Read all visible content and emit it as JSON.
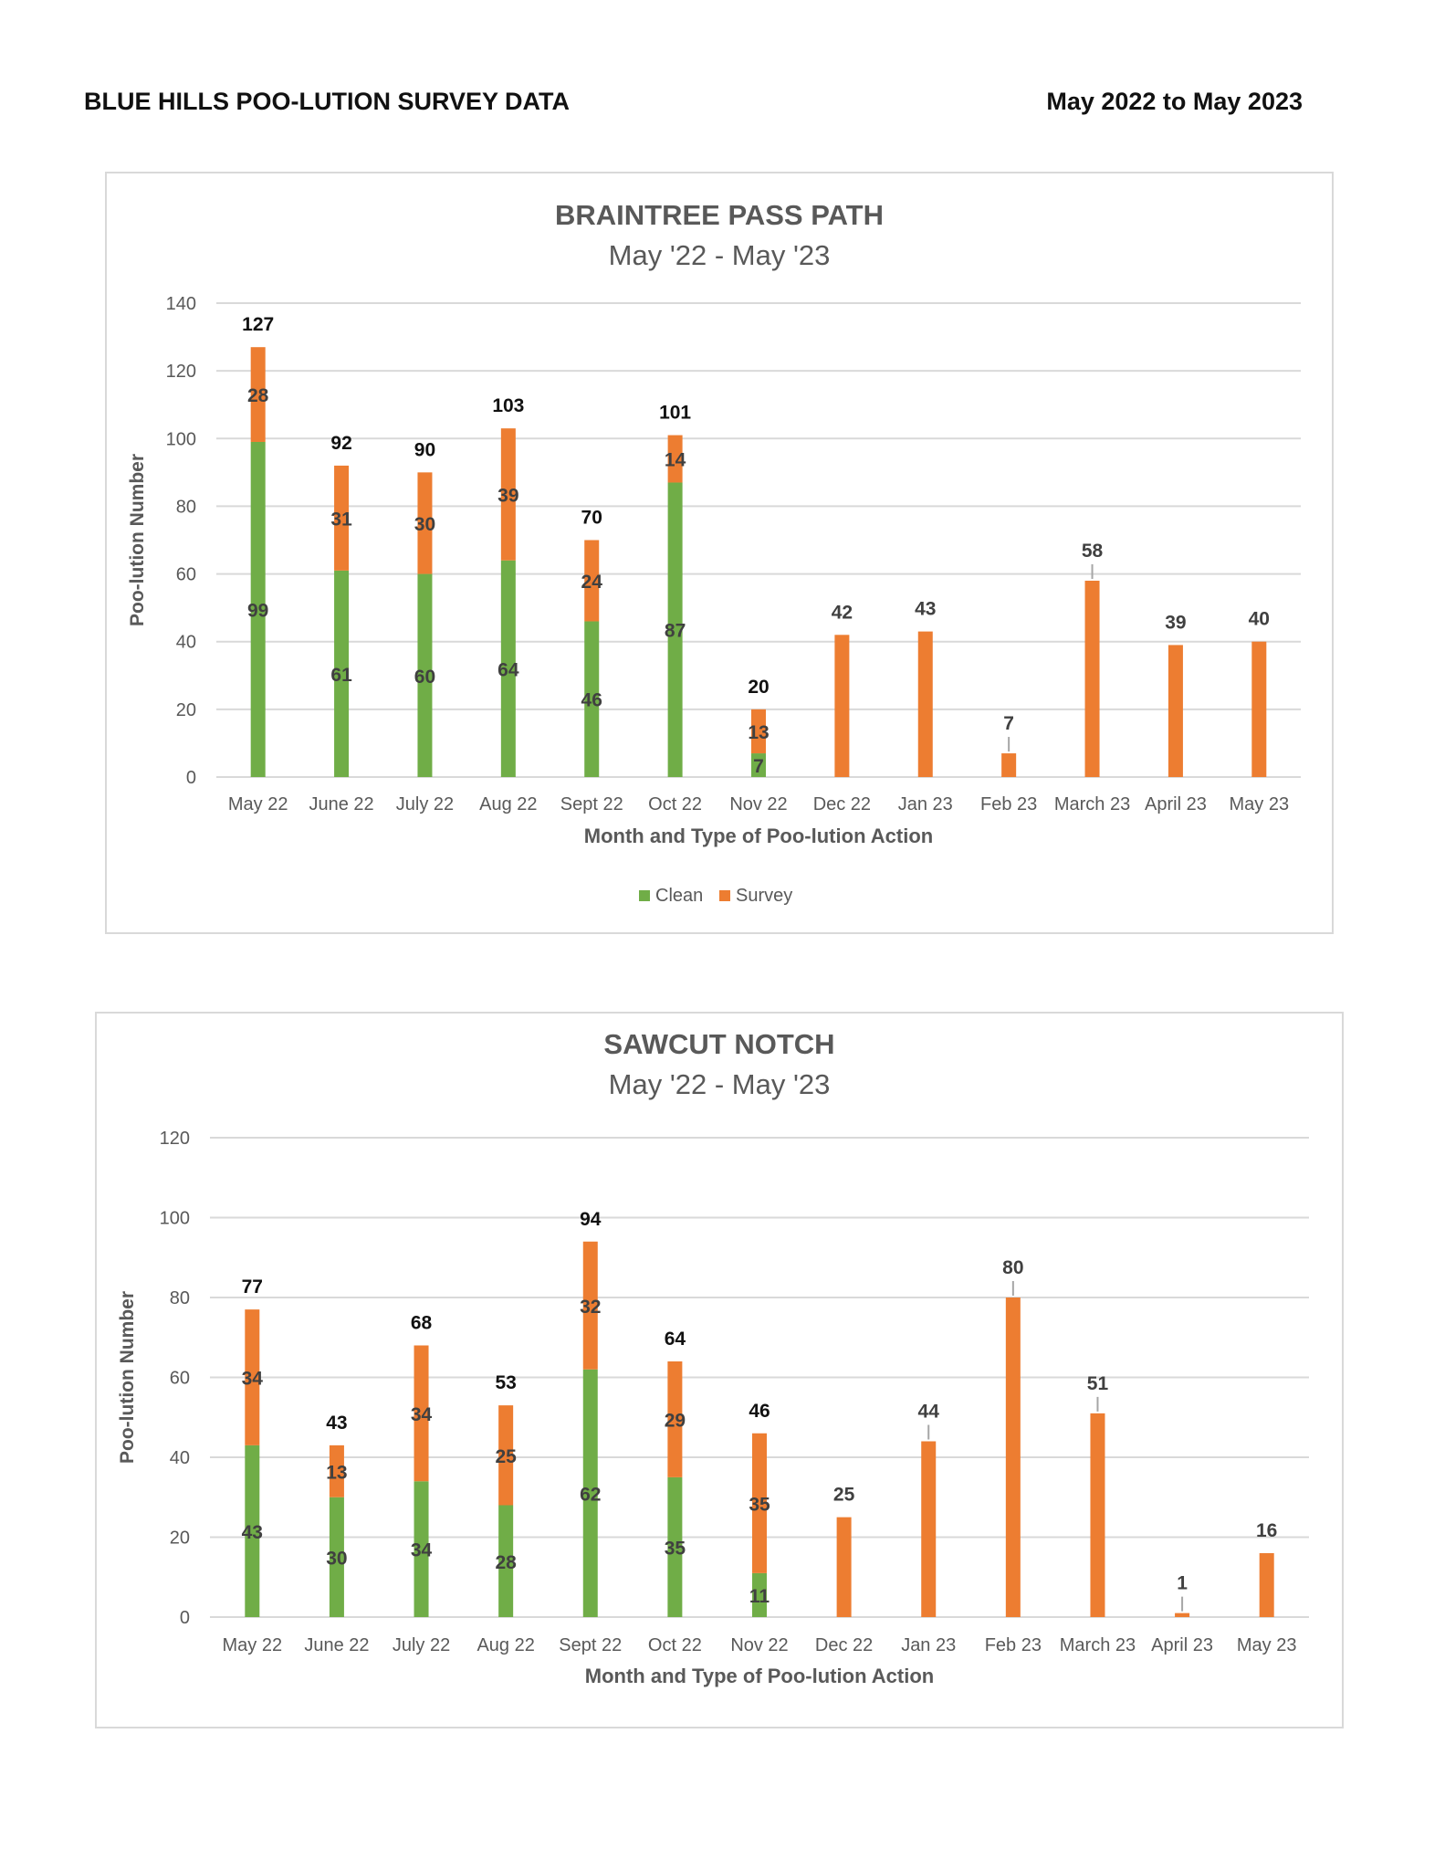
{
  "header": {
    "title": "BLUE HILLS POO-LUTION SURVEY DATA",
    "date_range": "May 2022 to May 2023"
  },
  "colors": {
    "clean": "#70ad47",
    "survey": "#ed7d31",
    "grid": "#d9d9d9",
    "axis_text": "#595959",
    "title_text": "#595959"
  },
  "chart_data": [
    {
      "type": "bar",
      "stacked": true,
      "title": "BRAINTREE PASS PATH",
      "subtitle": "May '22 - May '23",
      "xlabel": "Month and Type of Poo-lution Action",
      "ylabel": "Poo-lution Number",
      "ylim": [
        0,
        140
      ],
      "yticks": [
        0,
        20,
        40,
        60,
        80,
        100,
        120,
        140
      ],
      "grid": true,
      "legend": "bottom",
      "categories": [
        "May 22",
        "June 22",
        "July 22",
        "Aug 22",
        "Sept 22",
        "Oct 22",
        "Nov 22",
        "Dec 22",
        "Jan 23",
        "Feb 23",
        "March 23",
        "April 23",
        "May 23"
      ],
      "series": [
        {
          "name": "Clean",
          "values": [
            99,
            61,
            60,
            64,
            46,
            87,
            7,
            0,
            0,
            0,
            0,
            0,
            0
          ]
        },
        {
          "name": "Survey",
          "values": [
            28,
            31,
            30,
            39,
            24,
            14,
            13,
            42,
            43,
            7,
            58,
            39,
            40
          ]
        }
      ],
      "totals": [
        127,
        92,
        90,
        103,
        70,
        101,
        20,
        42,
        43,
        7,
        58,
        39,
        40
      ]
    },
    {
      "type": "bar",
      "stacked": true,
      "title": "SAWCUT NOTCH",
      "subtitle": "May '22 - May '23",
      "xlabel": "Month and Type of Poo-lution Action",
      "ylabel": "Poo-lution Number",
      "ylim": [
        0,
        120
      ],
      "yticks": [
        0,
        20,
        40,
        60,
        80,
        100,
        120
      ],
      "grid": true,
      "legend": "none",
      "categories": [
        "May 22",
        "June 22",
        "July 22",
        "Aug 22",
        "Sept 22",
        "Oct 22",
        "Nov 22",
        "Dec 22",
        "Jan 23",
        "Feb 23",
        "March 23",
        "April 23",
        "May 23"
      ],
      "series": [
        {
          "name": "Clean",
          "values": [
            43,
            30,
            34,
            28,
            62,
            35,
            11,
            0,
            0,
            0,
            0,
            0,
            0
          ]
        },
        {
          "name": "Survey",
          "values": [
            34,
            13,
            34,
            25,
            32,
            29,
            35,
            25,
            44,
            80,
            51,
            1,
            16
          ]
        }
      ],
      "totals": [
        77,
        43,
        68,
        53,
        94,
        64,
        46,
        25,
        44,
        80,
        51,
        1,
        16
      ]
    }
  ]
}
